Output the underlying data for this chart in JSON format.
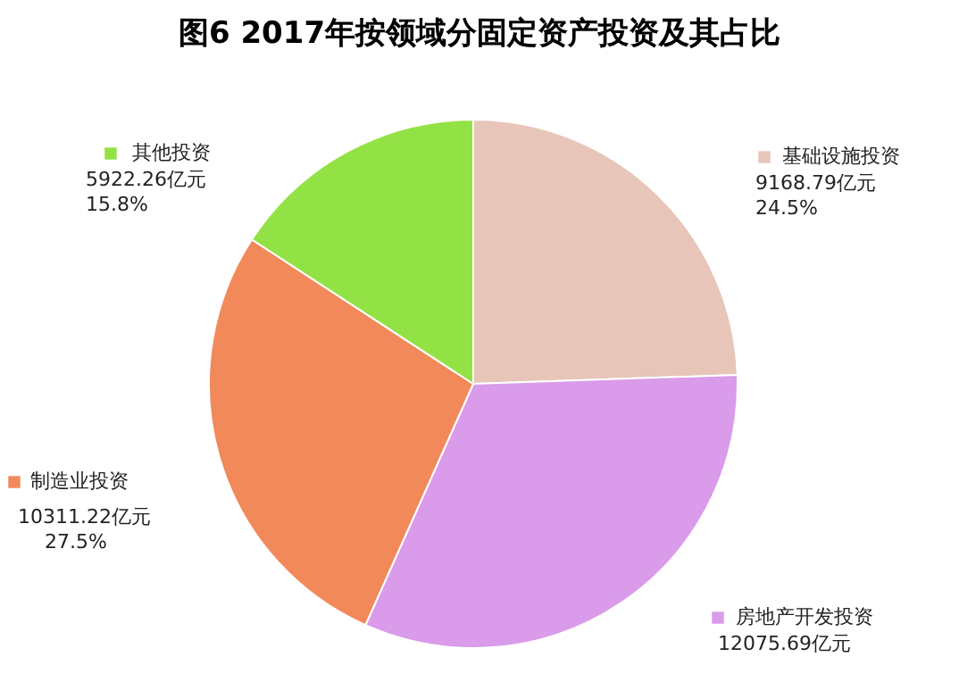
{
  "chart_data": {
    "type": "pie",
    "title": "图6    2017年按领域分固定资产投资及其占比",
    "categories": [
      "基础设施投资",
      "房地产开发投资",
      "制造业投资",
      "其他投资"
    ],
    "values": [
      9168.79,
      12075.69,
      10311.22,
      5922.26
    ],
    "colors": [
      "#e8c5b9",
      "#d99bea",
      "#f2895a",
      "#93e245"
    ],
    "value_labels": [
      "9168.79亿元\n24.5%",
      "12075.69亿元",
      "10311.22亿元\n27.5%",
      "5922.26亿元\n15.8%"
    ],
    "legend": "right"
  }
}
